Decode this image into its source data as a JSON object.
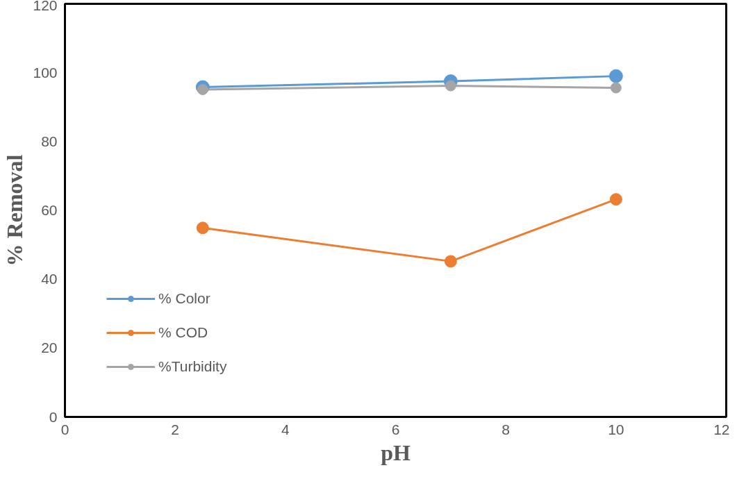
{
  "chart_data": {
    "type": "line",
    "xlabel": "pH",
    "ylabel": "% Removal",
    "x": [
      2.5,
      7,
      10
    ],
    "series": [
      {
        "name": "% Color",
        "color": "#5b9bd5",
        "values": [
          95.8,
          97.5,
          99.0
        ]
      },
      {
        "name": "% COD",
        "color": "#ed7d31",
        "values": [
          54.9,
          45.2,
          63.2
        ]
      },
      {
        "name": "%Turbidity",
        "color": "#a5a5a5",
        "values": [
          95.1,
          96.2,
          95.6
        ]
      }
    ],
    "xlim": [
      0,
      12
    ],
    "xticks": [
      0,
      2,
      4,
      6,
      8,
      10,
      12
    ],
    "ylim": [
      0,
      120
    ],
    "yticks": [
      0,
      20,
      40,
      60,
      80,
      100,
      120
    ],
    "grid": false,
    "legend": "bottom left",
    "marker": "circle",
    "line_style": "solid"
  }
}
